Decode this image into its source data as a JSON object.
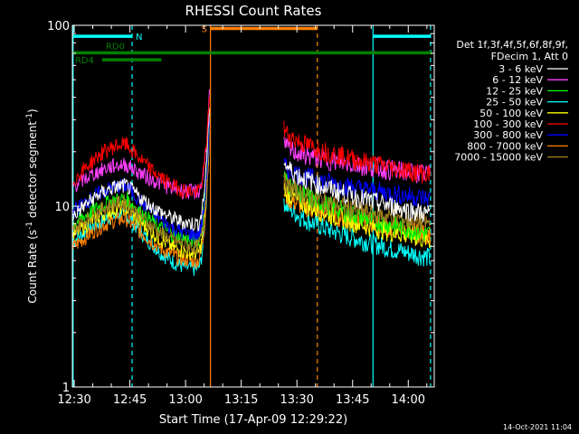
{
  "chart_data": {
    "type": "line",
    "title": "RHESSI Count Rates",
    "xlabel": "Start Time (17-Apr-09 12:29:22)",
    "ylabel": "Count Rate (s⁻¹ detector segment⁻¹)",
    "ylabel_main": "Count Rate (s",
    "ylabel_mid": " detector segment",
    "ylabel_end": ")",
    "ylabel_sup": "-1",
    "yscale": "log",
    "ylim": [
      1,
      100
    ],
    "xlim_minutes": [
      -0.5,
      97.0
    ],
    "x_tick_minutes": [
      0,
      15,
      30,
      45,
      60,
      75,
      90
    ],
    "x_tick_labels": [
      "12:30",
      "12:45",
      "13:00",
      "13:15",
      "13:30",
      "13:45",
      "14:00"
    ],
    "y_tick_values": [
      1,
      10,
      100
    ],
    "y_tick_labels": [
      "1",
      "10",
      "100"
    ],
    "legend_header": [
      "Det 1f,3f,4f,5f,6f,8f,9f,",
      "FDecim 1, Att 0"
    ],
    "series": [
      {
        "name": "3 - 6 keV",
        "color": "#ffffff",
        "values_at": {
          "start": 9.0,
          "peak": 13.0,
          "dip": 8.0,
          "spike": 40,
          "after": 18.0,
          "end": 9.0
        }
      },
      {
        "name": "6 - 12 keV",
        "color": "#ff40ff",
        "values_at": {
          "start": 13.0,
          "peak": 17.0,
          "dip": 12.0,
          "spike": 45,
          "after": 22.0,
          "end": 15.0
        }
      },
      {
        "name": "12 - 25 keV",
        "color": "#00ff00",
        "values_at": {
          "start": 8.0,
          "peak": 11.0,
          "dip": 6.5,
          "spike": 38,
          "after": 15.0,
          "end": 7.0
        }
      },
      {
        "name": "25 - 50 keV",
        "color": "#00ffff",
        "values_at": {
          "start": 6.5,
          "peak": 9.0,
          "dip": 4.5,
          "spike": 30,
          "after": 11.0,
          "end": 5.2
        }
      },
      {
        "name": "50 - 100 keV",
        "color": "#ffff00",
        "values_at": {
          "start": 7.0,
          "peak": 9.8,
          "dip": 5.5,
          "spike": 30,
          "after": 13.0,
          "end": 6.5
        }
      },
      {
        "name": "100 - 300 keV",
        "color": "#ff0000",
        "values_at": {
          "start": 14.0,
          "peak": 22.0,
          "dip": 12.0,
          "spike": 45,
          "after": 27.0,
          "end": 15.0
        }
      },
      {
        "name": "300 - 800 keV",
        "color": "#0000ff",
        "values_at": {
          "start": 9.5,
          "peak": 13.0,
          "dip": 7.0,
          "spike": 30,
          "after": 17.0,
          "end": 11.0
        }
      },
      {
        "name": "800 - 7000 keV",
        "color": "#ff8000",
        "values_at": {
          "start": 6.0,
          "peak": 8.5,
          "dip": 5.0,
          "spike": 28,
          "after": 12.0,
          "end": 7.0
        }
      },
      {
        "name": "7000 - 15000 keV",
        "color": "#a08020",
        "values_at": {
          "start": 7.5,
          "peak": 10.5,
          "dip": 6.0,
          "spike": 32,
          "after": 14.0,
          "end": 8.0
        }
      }
    ],
    "data_gaps_minutes": [
      [
        36.5,
        56.5
      ]
    ],
    "vertical_markers": [
      {
        "minute": -0.3,
        "color": "#00ffff",
        "style": "solid"
      },
      {
        "minute": 15.6,
        "color": "#00ffff",
        "style": "dashed"
      },
      {
        "minute": 36.7,
        "color": "#ff8000",
        "style": "solid"
      },
      {
        "minute": 65.5,
        "color": "#ff8000",
        "style": "dashed"
      },
      {
        "minute": 80.5,
        "color": "#00ffff",
        "style": "solid"
      },
      {
        "minute": 96.0,
        "color": "#00ffff",
        "style": "dashed"
      }
    ],
    "bars": [
      {
        "label": "N",
        "color": "#00ffff",
        "start": -0.3,
        "end": 15.6,
        "level": 87
      },
      {
        "label": "",
        "color": "#00ffff",
        "start": 80.5,
        "end": 96.0,
        "level": 87
      },
      {
        "label": "S",
        "color": "#ff8000",
        "start": 36.7,
        "end": 65.5,
        "level": 96
      },
      {
        "label": "RD0",
        "color": "#008000",
        "start": -0.3,
        "end": 23.5,
        "level": 70.5
      },
      {
        "label": "",
        "color": "#008000",
        "start": 23.5,
        "end": 96.5,
        "level": 70.5
      },
      {
        "label": "RD4",
        "color": "#008000",
        "start": 7.5,
        "end": 23.5,
        "level": 64.5
      }
    ]
  },
  "footer": {
    "timestamp": "14-Oct-2021 11:04"
  }
}
